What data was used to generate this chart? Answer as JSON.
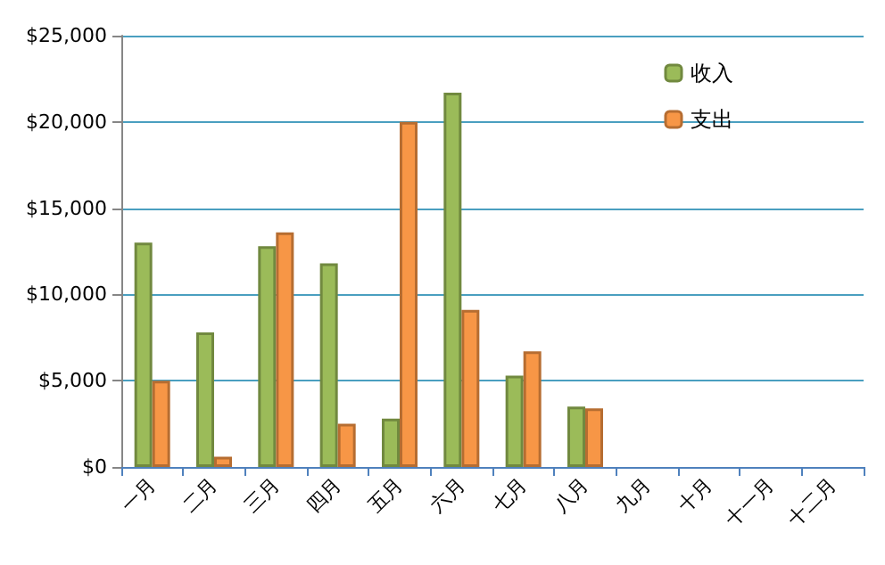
{
  "chart_data": {
    "type": "bar",
    "categories": [
      "一月",
      "二月",
      "三月",
      "四月",
      "五月",
      "六月",
      "七月",
      "八月",
      "九月",
      "十月",
      "十一月",
      "十二月"
    ],
    "series": [
      {
        "name": "收入",
        "color": "#9bbb59",
        "values": [
          13000,
          7800,
          12800,
          11800,
          2800,
          21700,
          5300,
          3500,
          null,
          null,
          null,
          null
        ]
      },
      {
        "name": "支出",
        "color": "#f79646",
        "values": [
          5000,
          600,
          13600,
          2500,
          20000,
          9100,
          6700,
          3400,
          null,
          null,
          null,
          null
        ]
      }
    ],
    "ylim": [
      0,
      25000
    ],
    "yticks": [
      {
        "value": 0,
        "label": "$0"
      },
      {
        "value": 5000,
        "label": "$5,000"
      },
      {
        "value": 10000,
        "label": "$10,000"
      },
      {
        "value": 15000,
        "label": "$15,000"
      },
      {
        "value": 20000,
        "label": "$20,000"
      },
      {
        "value": 25000,
        "label": "$25,000"
      }
    ],
    "grid": "y",
    "legend": "top right"
  }
}
